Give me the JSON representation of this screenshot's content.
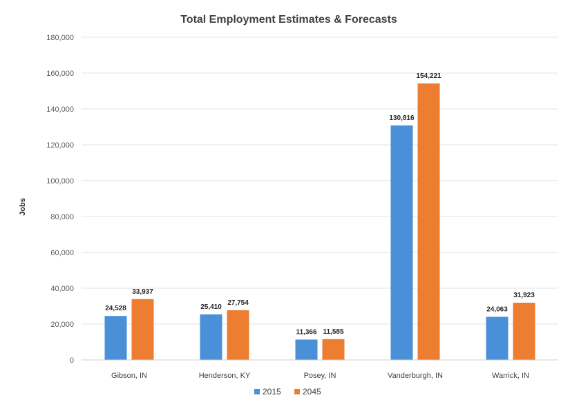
{
  "chart_data": {
    "type": "bar",
    "title": "Total Employment Estimates & Forecasts",
    "ylabel": "Jobs",
    "xlabel": "",
    "categories": [
      "Gibson, IN",
      "Henderson, KY",
      "Posey, IN",
      "Vanderburgh, IN",
      "Warrick, IN"
    ],
    "series": [
      {
        "name": "2015",
        "color": "#4a90d9",
        "values": [
          24528,
          25410,
          11366,
          130816,
          24063
        ]
      },
      {
        "name": "2045",
        "color": "#ed7d31",
        "values": [
          33937,
          27754,
          11585,
          154221,
          31923
        ]
      }
    ],
    "data_labels": [
      [
        "24,528",
        "25,410",
        "11,366",
        "130,816",
        "24,063"
      ],
      [
        "33,937",
        "27,754",
        "11,585",
        "154,221",
        "31,923"
      ]
    ],
    "ylim": [
      0,
      180000
    ],
    "yticks": [
      0,
      20000,
      40000,
      60000,
      80000,
      100000,
      120000,
      140000,
      160000,
      180000
    ],
    "ytick_labels": [
      "0",
      "20,000",
      "40,000",
      "60,000",
      "80,000",
      "100,000",
      "120,000",
      "140,000",
      "160,000",
      "180,000"
    ],
    "grid": true,
    "legend_position": "bottom"
  }
}
